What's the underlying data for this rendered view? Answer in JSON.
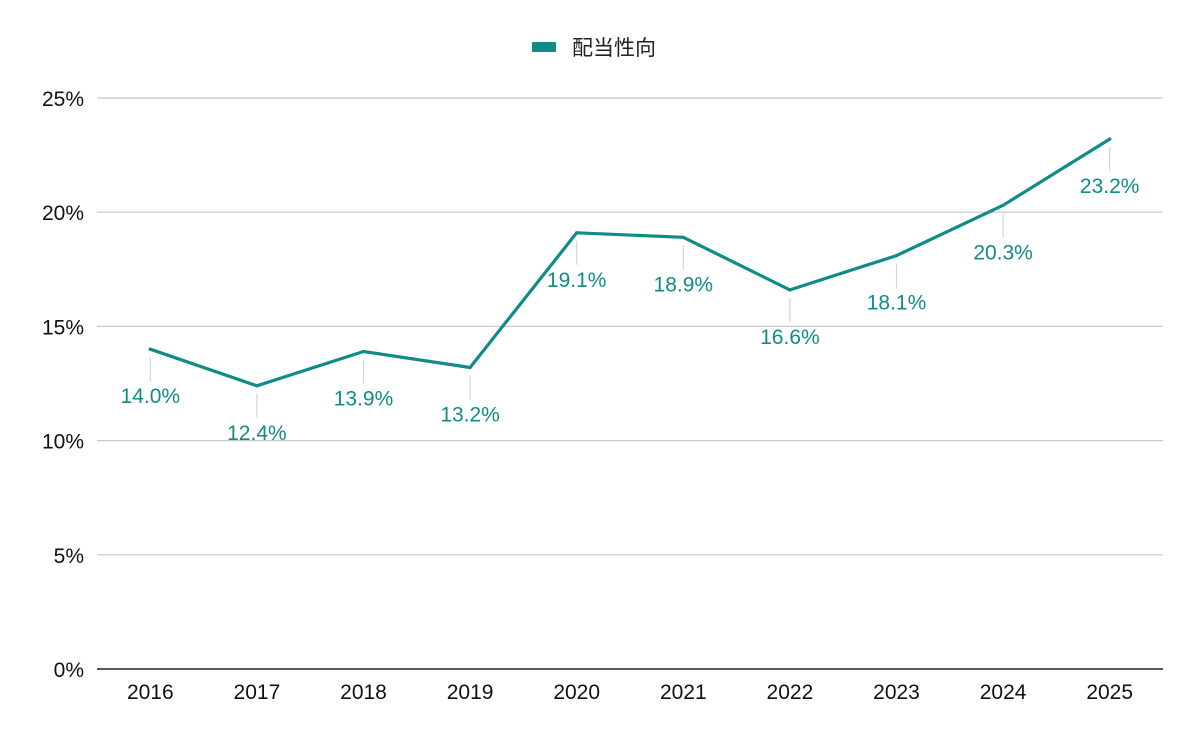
{
  "colors": {
    "series": "#0f8c85",
    "grid": "#c8c8c8",
    "axis": "#222222",
    "leader": "#d6d6d6"
  },
  "legend": {
    "position": "top-center"
  },
  "chart_data": {
    "type": "line",
    "categories": [
      "2016",
      "2017",
      "2018",
      "2019",
      "2020",
      "2021",
      "2022",
      "2023",
      "2024",
      "2025"
    ],
    "series": [
      {
        "name": "配当性向",
        "values": [
          14.0,
          12.4,
          13.9,
          13.2,
          19.1,
          18.9,
          16.6,
          18.1,
          20.3,
          23.2
        ],
        "labels": [
          "14.0%",
          "12.4%",
          "13.9%",
          "13.2%",
          "19.1%",
          "18.9%",
          "16.6%",
          "18.1%",
          "20.3%",
          "23.2%"
        ]
      }
    ],
    "y_ticks": [
      0,
      5,
      10,
      15,
      20,
      25
    ],
    "y_tick_labels": [
      "0%",
      "5%",
      "10%",
      "15%",
      "20%",
      "25%"
    ],
    "ylim": [
      0,
      25
    ],
    "grid": true
  }
}
